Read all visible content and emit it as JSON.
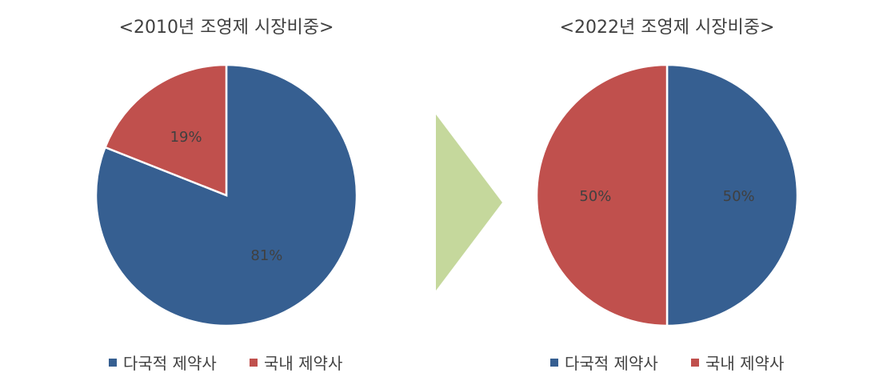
{
  "arrow": {
    "color": "#C5D89C"
  },
  "chart_data": [
    {
      "type": "pie",
      "title": "<2010년 조영제 시장비중>",
      "categories": [
        "다국적 제약사",
        "국내 제약사"
      ],
      "values": [
        81,
        19
      ],
      "labels": [
        "81%",
        "19%"
      ],
      "colors": [
        "#365F91",
        "#C0504D"
      ],
      "legend": "bottom"
    },
    {
      "type": "pie",
      "title": "<2022년 조영제 시장비중>",
      "categories": [
        "다국적 제약사",
        "국내 제약사"
      ],
      "values": [
        50,
        50
      ],
      "labels": [
        "50%",
        "50%"
      ],
      "colors": [
        "#365F91",
        "#C0504D"
      ],
      "legend": "bottom"
    }
  ]
}
